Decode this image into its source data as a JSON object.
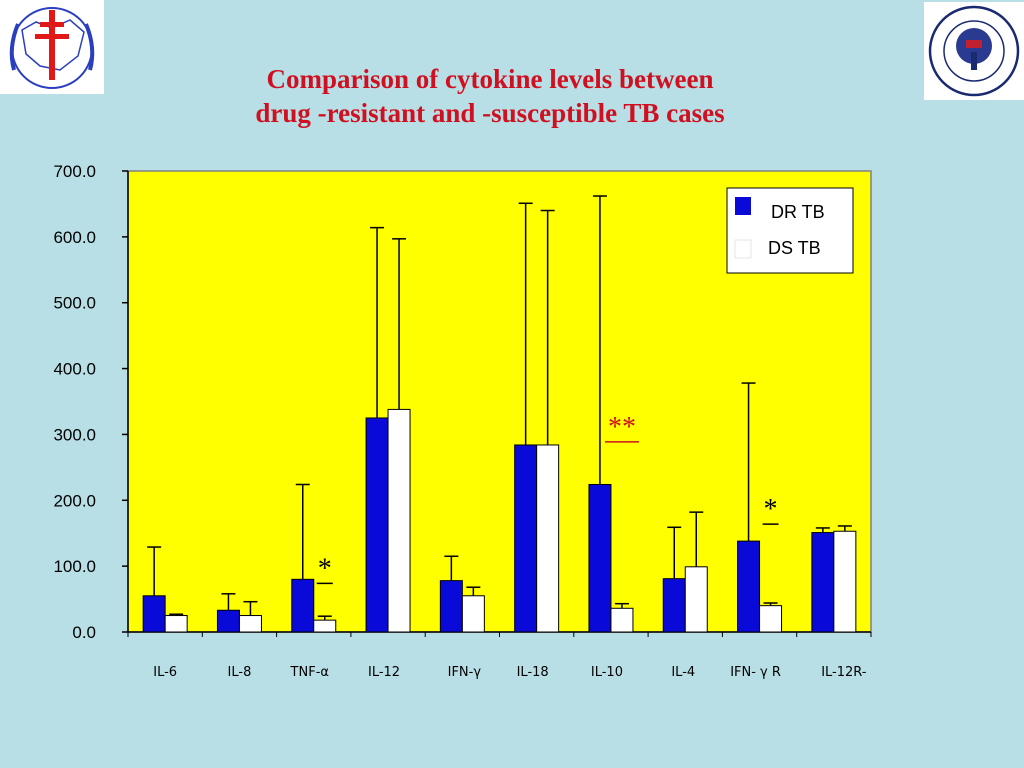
{
  "slide": {
    "title_line1": "Comparison of cytokine levels between",
    "title_line2": "drug -resistant and -susceptible TB cases",
    "logos": {
      "left": "double-barred-cross-emblem",
      "right": "kyoto-university-seal"
    }
  },
  "colors": {
    "background": "#b8dfe6",
    "plot_area": "#ffff00",
    "title": "#d01020",
    "dr_bar": "#0a0ad8",
    "ds_bar": "#ffffff",
    "sig_red": "#d01020"
  },
  "chart_data": {
    "type": "bar",
    "title": "Comparison of cytokine levels between drug -resistant and -susceptible TB cases",
    "xlabel": "",
    "ylabel": "",
    "ylim": [
      0,
      700
    ],
    "yticks": [
      "0.0",
      "100.0",
      "200.0",
      "300.0",
      "400.0",
      "500.0",
      "600.0",
      "700.0"
    ],
    "categories": [
      "IL-6",
      "IL-8",
      "TNF-α",
      "IL-12",
      "IFN-γ",
      "IL-18",
      "IL-10",
      "IL-4",
      "IFN- γ R",
      "IL-12R-"
    ],
    "series": [
      {
        "name": "DR TB",
        "color": "#0a0ad8",
        "values": [
          55,
          33,
          80,
          325,
          78,
          284,
          224,
          81,
          138,
          151
        ],
        "error_upper": [
          129,
          58,
          224,
          614,
          115,
          651,
          662,
          159,
          378,
          158
        ]
      },
      {
        "name": "DS TB",
        "color": "#ffffff",
        "values": [
          25,
          25,
          18,
          338,
          55,
          284,
          36,
          99,
          40,
          153
        ],
        "error_upper": [
          27,
          46,
          24,
          597,
          68,
          640,
          43,
          182,
          44,
          161
        ]
      }
    ],
    "legend": {
      "position": "top-right"
    },
    "annotations": [
      {
        "category": "TNF-α",
        "text": "*",
        "color": "#000000",
        "value": 95
      },
      {
        "category": "IL-10",
        "text": "**",
        "color": "#d01020",
        "value": 310
      },
      {
        "category": "IFN- γ R",
        "text": "*",
        "color": "#000000",
        "value": 185
      }
    ]
  }
}
